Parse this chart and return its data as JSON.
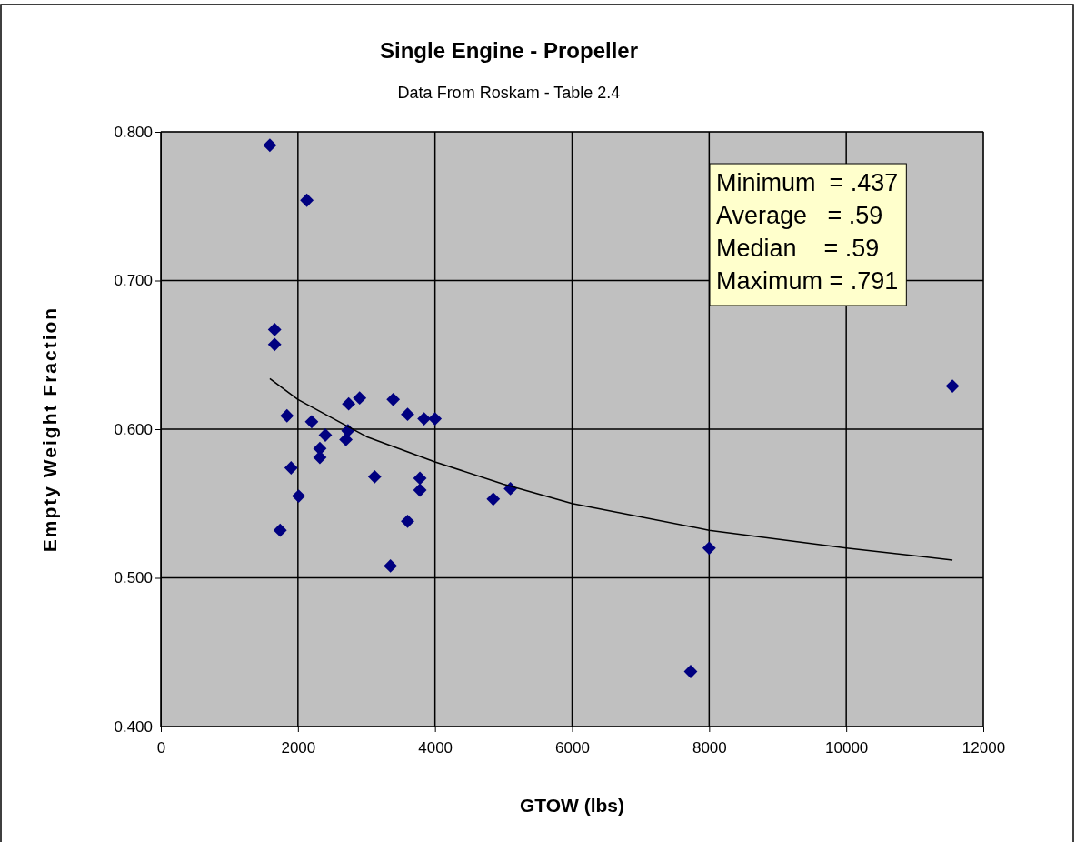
{
  "chart_data": {
    "type": "scatter",
    "title": "Single Engine - Propeller",
    "subtitle": "Data From Roskam - Table 2.4",
    "xlabel": "GTOW (lbs)",
    "ylabel": "Empty Weight Fraction",
    "annotations": [
      "Minimum  = .437",
      "Average   = .59",
      "Median    = .59",
      "Maximum = .791"
    ],
    "xlim": [
      0,
      12000
    ],
    "xticks": [
      0,
      2000,
      4000,
      6000,
      8000,
      10000,
      12000
    ],
    "ylim": [
      0.4,
      0.8
    ],
    "yticks": [
      {
        "value": 0.4,
        "label": "0.400"
      },
      {
        "value": 0.5,
        "label": "0.500"
      },
      {
        "value": 0.6,
        "label": "0.600"
      },
      {
        "value": 0.7,
        "label": "0.700"
      },
      {
        "value": 0.8,
        "label": "0.800"
      }
    ],
    "grid": true,
    "marker": "diamond",
    "series": [
      {
        "color": "#000080",
        "x": [
          1590,
          2130,
          1660,
          1660,
          1840,
          2200,
          2740,
          2900,
          3390,
          3600,
          3840,
          4000,
          2400,
          2730,
          2700,
          2320,
          2320,
          1900,
          3120,
          3780,
          3780,
          2010,
          1740,
          3600,
          3350,
          4850,
          5100,
          7730,
          8000,
          11550
        ],
        "values": [
          0.791,
          0.754,
          0.667,
          0.657,
          0.609,
          0.605,
          0.617,
          0.621,
          0.62,
          0.61,
          0.607,
          0.607,
          0.596,
          0.599,
          0.593,
          0.587,
          0.581,
          0.574,
          0.568,
          0.567,
          0.559,
          0.555,
          0.532,
          0.538,
          0.508,
          0.553,
          0.56,
          0.437,
          0.52,
          0.629
        ]
      },
      {
        "type": "line",
        "color": "#000000",
        "marker": "none",
        "x": [
          1590,
          2000,
          3000,
          4000,
          5000,
          6000,
          8000,
          10000,
          11550
        ],
        "values": [
          0.634,
          0.62,
          0.595,
          0.578,
          0.563,
          0.55,
          0.532,
          0.52,
          0.512
        ]
      }
    ]
  }
}
